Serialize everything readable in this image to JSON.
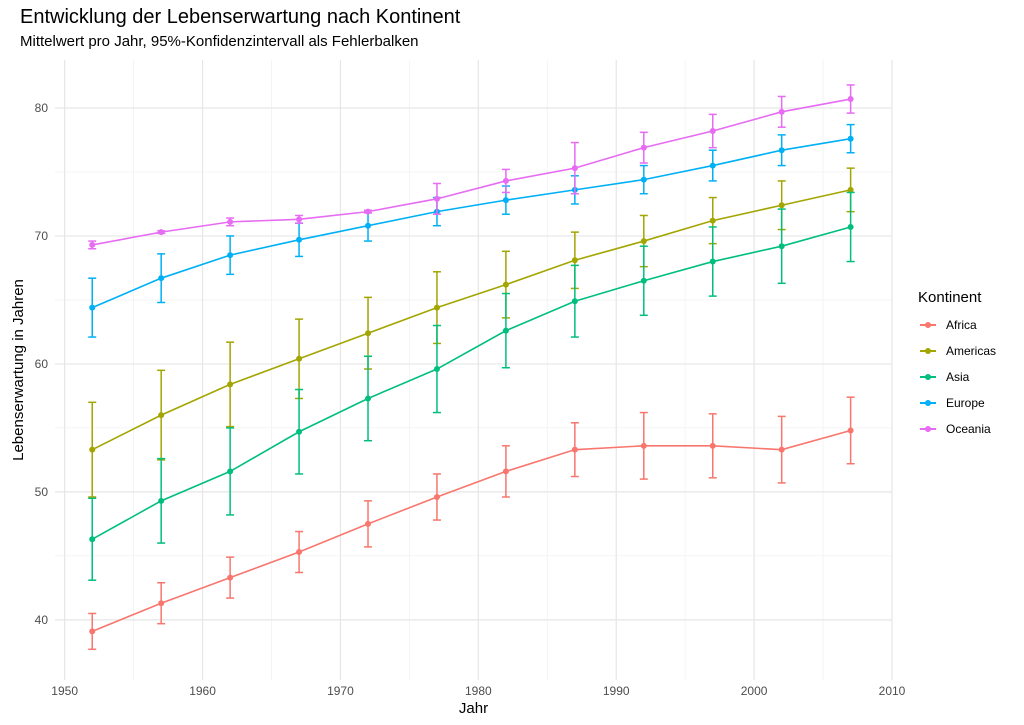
{
  "chart_data": {
    "type": "line",
    "title": "Entwicklung der Lebenserwartung nach Kontinent",
    "subtitle": "Mittelwert pro Jahr, 95%-Konfidenzintervall als Fehlerbalken",
    "xlabel": "Jahr",
    "ylabel": "Lebenserwartung in Jahren",
    "xlim": [
      1949.3,
      2010
    ],
    "ylim": [
      35.3,
      83.75
    ],
    "xticks": [
      1950,
      1960,
      1970,
      1980,
      1990,
      2000,
      2010
    ],
    "yticks": [
      40,
      50,
      60,
      70,
      80
    ],
    "grid": true,
    "legend": {
      "title": "Kontinent",
      "placement": "right"
    },
    "x": [
      1952,
      1957,
      1962,
      1967,
      1972,
      1977,
      1982,
      1987,
      1992,
      1997,
      2002,
      2007
    ],
    "series": [
      {
        "name": "Africa",
        "color": "#F8766D",
        "values": [
          39.1,
          41.3,
          43.3,
          45.3,
          47.5,
          49.6,
          51.6,
          53.3,
          53.6,
          53.6,
          53.3,
          54.8
        ],
        "ci_halfwidth": [
          1.4,
          1.6,
          1.6,
          1.6,
          1.8,
          1.8,
          2.0,
          2.1,
          2.6,
          2.5,
          2.6,
          2.6
        ]
      },
      {
        "name": "Americas",
        "color": "#A3A500",
        "values": [
          53.3,
          56.0,
          58.4,
          60.4,
          62.4,
          64.4,
          66.2,
          68.1,
          69.6,
          71.2,
          72.4,
          73.6
        ],
        "ci_halfwidth": [
          3.7,
          3.5,
          3.3,
          3.1,
          2.8,
          2.8,
          2.6,
          2.2,
          2.0,
          1.8,
          1.9,
          1.7
        ]
      },
      {
        "name": "Asia",
        "color": "#00BF7D",
        "values": [
          46.3,
          49.3,
          51.6,
          54.7,
          57.3,
          59.6,
          62.6,
          64.9,
          66.5,
          68.0,
          69.2,
          70.7
        ],
        "ci_halfwidth": [
          3.2,
          3.3,
          3.4,
          3.3,
          3.3,
          3.4,
          2.9,
          2.8,
          2.7,
          2.7,
          2.9,
          2.7
        ]
      },
      {
        "name": "Europe",
        "color": "#00B0F6",
        "values": [
          64.4,
          66.7,
          68.5,
          69.7,
          70.8,
          71.9,
          72.8,
          73.6,
          74.4,
          75.5,
          76.7,
          77.6
        ],
        "ci_halfwidth": [
          2.3,
          1.9,
          1.5,
          1.3,
          1.2,
          1.1,
          1.1,
          1.1,
          1.1,
          1.2,
          1.2,
          1.1
        ]
      },
      {
        "name": "Oceania",
        "color": "#E76BF3",
        "values": [
          69.3,
          70.3,
          71.1,
          71.3,
          71.9,
          72.9,
          74.3,
          75.3,
          76.9,
          78.2,
          79.7,
          80.7
        ],
        "ci_halfwidth": [
          0.3,
          0.1,
          0.3,
          0.3,
          0.1,
          1.2,
          0.9,
          2.0,
          1.2,
          1.3,
          1.2,
          1.1
        ]
      }
    ]
  }
}
